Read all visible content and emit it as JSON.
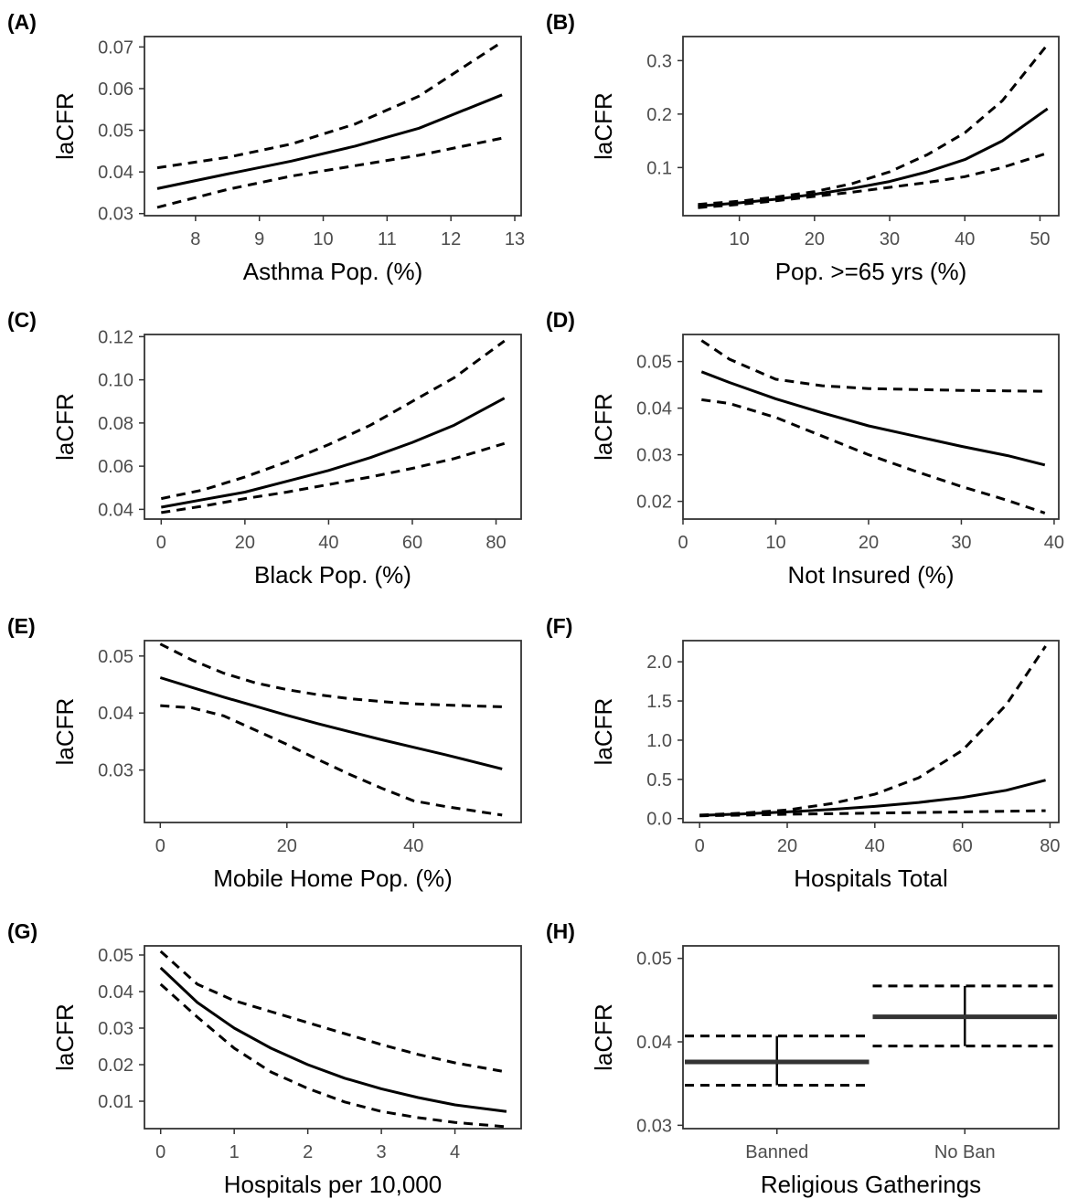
{
  "chart_data": [
    {
      "panel_label": "(A)",
      "type": "line",
      "xlabel": "Asthma Pop. (%)",
      "ylabel": "laCFR",
      "xlim": [
        7.2,
        13.1
      ],
      "ylim": [
        0.0295,
        0.0725
      ],
      "xticks": [
        8,
        9,
        10,
        11,
        12,
        13
      ],
      "yticks": [
        0.03,
        0.04,
        0.05,
        0.06,
        0.07
      ],
      "xtick_labels": [
        "8",
        "9",
        "10",
        "11",
        "12",
        "13"
      ],
      "ytick_labels": [
        "0.03",
        "0.04",
        "0.05",
        "0.06",
        "0.07"
      ],
      "x": [
        7.4,
        8.5,
        9.5,
        10.5,
        11.5,
        12.8
      ],
      "series": [
        {
          "name": "fit",
          "style": "solid",
          "values": [
            0.036,
            0.0395,
            0.0426,
            0.0462,
            0.0505,
            0.0585
          ]
        },
        {
          "name": "upper",
          "style": "dashed",
          "values": [
            0.041,
            0.0435,
            0.0467,
            0.0515,
            0.0582,
            0.0712
          ]
        },
        {
          "name": "lower",
          "style": "dashed",
          "values": [
            0.0315,
            0.0358,
            0.039,
            0.0415,
            0.044,
            0.0481
          ]
        }
      ]
    },
    {
      "panel_label": "(B)",
      "type": "line",
      "xlabel": "Pop. >=65 yrs (%)",
      "ylabel": "laCFR",
      "xlim": [
        2.5,
        52.5
      ],
      "ylim": [
        0.01,
        0.345
      ],
      "xticks": [
        10,
        20,
        30,
        40,
        50
      ],
      "yticks": [
        0.1,
        0.2,
        0.3
      ],
      "xtick_labels": [
        "10",
        "20",
        "30",
        "40",
        "50"
      ],
      "ytick_labels": [
        "0.1",
        "0.2",
        "0.3"
      ],
      "x": [
        4.5,
        10,
        15,
        20,
        25,
        30,
        35,
        40,
        45,
        51
      ],
      "series": [
        {
          "name": "fit",
          "style": "solid",
          "values": [
            0.028,
            0.034,
            0.041,
            0.05,
            0.061,
            0.074,
            0.092,
            0.115,
            0.15,
            0.21
          ]
        },
        {
          "name": "upper",
          "style": "dashed",
          "values": [
            0.031,
            0.037,
            0.045,
            0.055,
            0.07,
            0.092,
            0.124,
            0.165,
            0.225,
            0.33
          ]
        },
        {
          "name": "lower",
          "style": "dashed",
          "values": [
            0.025,
            0.031,
            0.038,
            0.046,
            0.054,
            0.063,
            0.072,
            0.083,
            0.1,
            0.127
          ]
        }
      ]
    },
    {
      "panel_label": "(C)",
      "type": "line",
      "xlabel": "Black Pop. (%)",
      "ylabel": "laCFR",
      "xlim": [
        -4,
        86
      ],
      "ylim": [
        0.0355,
        0.121
      ],
      "xticks": [
        0,
        20,
        40,
        60,
        80
      ],
      "yticks": [
        0.04,
        0.06,
        0.08,
        0.1,
        0.12
      ],
      "xtick_labels": [
        "0",
        "20",
        "40",
        "60",
        "80"
      ],
      "ytick_labels": [
        "0.04",
        "0.06",
        "0.08",
        "0.10",
        "0.12"
      ],
      "x": [
        0,
        10,
        20,
        30,
        40,
        50,
        60,
        70,
        82
      ],
      "series": [
        {
          "name": "fit",
          "style": "solid",
          "values": [
            0.041,
            0.0445,
            0.048,
            0.053,
            0.058,
            0.064,
            0.071,
            0.079,
            0.0915
          ]
        },
        {
          "name": "upper",
          "style": "dashed",
          "values": [
            0.045,
            0.049,
            0.055,
            0.062,
            0.07,
            0.079,
            0.09,
            0.101,
            0.118
          ]
        },
        {
          "name": "lower",
          "style": "dashed",
          "values": [
            0.0385,
            0.0415,
            0.045,
            0.048,
            0.0515,
            0.055,
            0.059,
            0.0635,
            0.0705
          ]
        }
      ]
    },
    {
      "panel_label": "(D)",
      "type": "line",
      "xlabel": "Not Insured (%)",
      "ylabel": "laCFR",
      "xlim": [
        0,
        40.5
      ],
      "ylim": [
        0.0162,
        0.0558
      ],
      "xticks": [
        0,
        10,
        20,
        30,
        40
      ],
      "yticks": [
        0.02,
        0.03,
        0.04,
        0.05
      ],
      "xtick_labels": [
        "0",
        "10",
        "20",
        "30",
        "40"
      ],
      "ytick_labels": [
        "0.02",
        "0.03",
        "0.04",
        "0.05"
      ],
      "x": [
        2,
        5,
        10,
        15,
        20,
        25,
        30,
        35,
        39
      ],
      "series": [
        {
          "name": "fit",
          "style": "solid",
          "values": [
            0.0478,
            0.0455,
            0.042,
            0.039,
            0.0362,
            0.034,
            0.0318,
            0.0298,
            0.0278
          ]
        },
        {
          "name": "upper",
          "style": "dashed",
          "values": [
            0.0545,
            0.0505,
            0.0462,
            0.0448,
            0.0442,
            0.044,
            0.0438,
            0.0437,
            0.0436
          ]
        },
        {
          "name": "lower",
          "style": "dashed",
          "values": [
            0.0418,
            0.041,
            0.038,
            0.034,
            0.03,
            0.0265,
            0.0232,
            0.0202,
            0.0175
          ]
        }
      ]
    },
    {
      "panel_label": "(E)",
      "type": "line",
      "xlabel": "Mobile Home Pop. (%)",
      "ylabel": "laCFR",
      "xlim": [
        -2.5,
        57
      ],
      "ylim": [
        0.0208,
        0.0527
      ],
      "xticks": [
        0,
        20,
        40
      ],
      "yticks": [
        0.03,
        0.04,
        0.05
      ],
      "xtick_labels": [
        "0",
        "20",
        "40"
      ],
      "ytick_labels": [
        "0.03",
        "0.04",
        "0.05"
      ],
      "x": [
        0,
        5,
        10,
        15,
        20,
        25,
        30,
        35,
        40,
        45,
        54
      ],
      "series": [
        {
          "name": "fit",
          "style": "solid",
          "values": [
            0.0462,
            0.0445,
            0.0428,
            0.0412,
            0.0396,
            0.0381,
            0.0367,
            0.0353,
            0.034,
            0.0327,
            0.0302
          ]
        },
        {
          "name": "upper",
          "style": "dashed",
          "values": [
            0.0521,
            0.0493,
            0.047,
            0.0453,
            0.0441,
            0.0432,
            0.0425,
            0.042,
            0.0416,
            0.0414,
            0.0411
          ]
        },
        {
          "name": "lower",
          "style": "dashed",
          "values": [
            0.0413,
            0.0409,
            0.0395,
            0.037,
            0.0345,
            0.0318,
            0.0292,
            0.0268,
            0.0246,
            0.0236,
            0.0221
          ]
        }
      ]
    },
    {
      "panel_label": "(F)",
      "type": "line",
      "xlabel": "Hospitals Total",
      "ylabel": "laCFR",
      "xlim": [
        -3.8,
        82
      ],
      "ylim": [
        -0.05,
        2.27
      ],
      "xticks": [
        0,
        20,
        40,
        60,
        80
      ],
      "yticks": [
        0,
        0.5,
        1,
        1.5,
        2
      ],
      "xtick_labels": [
        "0",
        "20",
        "40",
        "60",
        "80"
      ],
      "ytick_labels": [
        "0.0",
        "0.5",
        "1.0",
        "1.5",
        "2.0"
      ],
      "x": [
        0,
        10,
        20,
        30,
        40,
        50,
        60,
        70,
        79
      ],
      "series": [
        {
          "name": "fit",
          "style": "solid",
          "values": [
            0.04,
            0.06,
            0.085,
            0.115,
            0.155,
            0.205,
            0.27,
            0.36,
            0.49
          ]
        },
        {
          "name": "upper",
          "style": "dashed",
          "values": [
            0.045,
            0.07,
            0.11,
            0.19,
            0.31,
            0.52,
            0.87,
            1.45,
            2.2
          ]
        },
        {
          "name": "lower",
          "style": "dashed",
          "values": [
            0.035,
            0.045,
            0.055,
            0.062,
            0.07,
            0.077,
            0.085,
            0.093,
            0.1
          ]
        }
      ]
    },
    {
      "panel_label": "(G)",
      "type": "line",
      "xlabel": "Hospitals per 10,000",
      "ylabel": "laCFR",
      "xlim": [
        -0.22,
        4.9
      ],
      "ylim": [
        0.0025,
        0.0525
      ],
      "xticks": [
        0,
        1,
        2,
        3,
        4
      ],
      "yticks": [
        0.01,
        0.02,
        0.03,
        0.04,
        0.05
      ],
      "xtick_labels": [
        "0",
        "1",
        "2",
        "3",
        "4"
      ],
      "ytick_labels": [
        "0.01",
        "0.02",
        "0.03",
        "0.04",
        "0.05"
      ],
      "x": [
        0,
        0.5,
        1,
        1.5,
        2,
        2.5,
        3,
        3.5,
        4,
        4.7
      ],
      "series": [
        {
          "name": "fit",
          "style": "solid",
          "values": [
            0.0465,
            0.037,
            0.03,
            0.0245,
            0.02,
            0.0163,
            0.0134,
            0.011,
            0.009,
            0.0072
          ]
        },
        {
          "name": "upper",
          "style": "dashed",
          "values": [
            0.051,
            0.042,
            0.0375,
            0.0345,
            0.0315,
            0.0285,
            0.0255,
            0.0228,
            0.0205,
            0.018
          ]
        },
        {
          "name": "lower",
          "style": "dashed",
          "values": [
            0.042,
            0.033,
            0.0245,
            0.018,
            0.0135,
            0.0098,
            0.0072,
            0.0055,
            0.0042,
            0.003
          ]
        }
      ]
    },
    {
      "panel_label": "(H)",
      "type": "errorbar",
      "xlabel": "Religious Gatherings",
      "ylabel": "laCFR",
      "ylim": [
        0.0296,
        0.0515
      ],
      "yticks": [
        0.03,
        0.04,
        0.05
      ],
      "ytick_labels": [
        "0.03",
        "0.04",
        "0.05"
      ],
      "categories": [
        "Banned",
        "No Ban"
      ],
      "values": [
        0.0376,
        0.043
      ],
      "lower": [
        0.0348,
        0.0395
      ],
      "upper": [
        0.0407,
        0.0467
      ]
    }
  ]
}
